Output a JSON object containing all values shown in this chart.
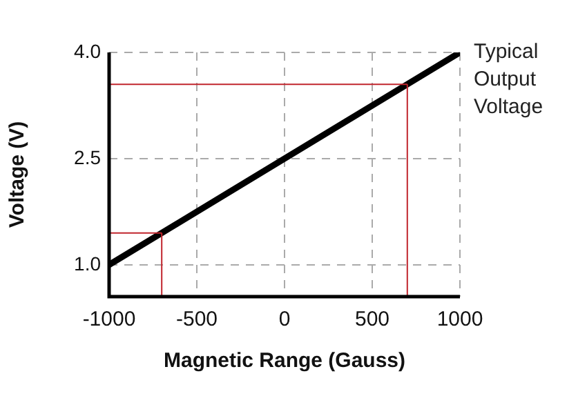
{
  "chart_data": {
    "type": "line",
    "xlabel": "Magnetic Range (Gauss)",
    "ylabel": "Voltage (V)",
    "x": [
      -1000,
      1000
    ],
    "series": [
      {
        "name": "Typical Output Voltage",
        "color": "#000000",
        "values": [
          1.0,
          4.0
        ]
      }
    ],
    "xlim": [
      -1000,
      1000
    ],
    "xticks": [
      -1000,
      -500,
      0,
      500,
      1000
    ],
    "ylim": [
      0.55,
      4.0
    ],
    "yticks": [
      {
        "value": 1,
        "label": "1.0"
      },
      {
        "value": 2.5,
        "label": "2.5"
      },
      {
        "value": 4,
        "label": "4.0"
      }
    ],
    "ref_lines": [
      {
        "axis": "x",
        "value": -700,
        "color": "#c0242c"
      },
      {
        "axis": "y",
        "value": 1.45,
        "color": "#c0242c"
      },
      {
        "axis": "x",
        "value": 700,
        "color": "#c0242c"
      },
      {
        "axis": "y",
        "value": 3.55,
        "color": "#c0242c"
      }
    ],
    "grid": true,
    "legend": false,
    "marker": "none",
    "line_style": "solid"
  }
}
